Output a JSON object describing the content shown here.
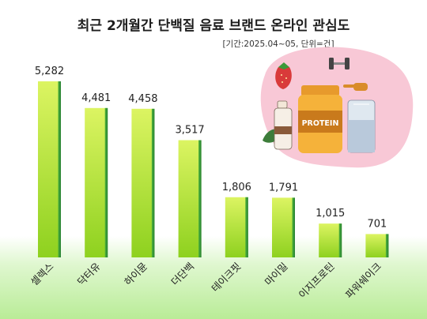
{
  "chart_data": {
    "type": "bar",
    "title": "최근 2개월간 단백질 음료 브랜드 온라인 관심도",
    "subtitle": "[기간:2025.04~05, 단위=건]",
    "categories": [
      "셀렉스",
      "닥터유",
      "하이뮨",
      "더단백",
      "테이크핏",
      "마이밀",
      "이지프로틴",
      "파워쉐이크"
    ],
    "values": [
      5282,
      4481,
      4458,
      3517,
      1806,
      1791,
      1015,
      701
    ],
    "value_labels": [
      "5,282",
      "4,481",
      "4,458",
      "3,517",
      "1,806",
      "1,791",
      "1,015",
      "701"
    ],
    "ylim": [
      0,
      5282
    ],
    "grid": false,
    "legend": "none"
  },
  "colors": {
    "bar_top": "#d8f25e",
    "bar_bottom": "#8fd21e",
    "bar_side": "#2e9a3a",
    "background_bottom": "#bfeea0",
    "illustration_bg": "#f8c8d6"
  },
  "illustration": {
    "label": "PROTEIN",
    "icons": [
      "strawberry-icon",
      "dumbbell-icon",
      "protein-jar-icon",
      "milk-carton-icon",
      "shaker-bottle-icon",
      "scoop-icon",
      "leaf-icon"
    ]
  }
}
